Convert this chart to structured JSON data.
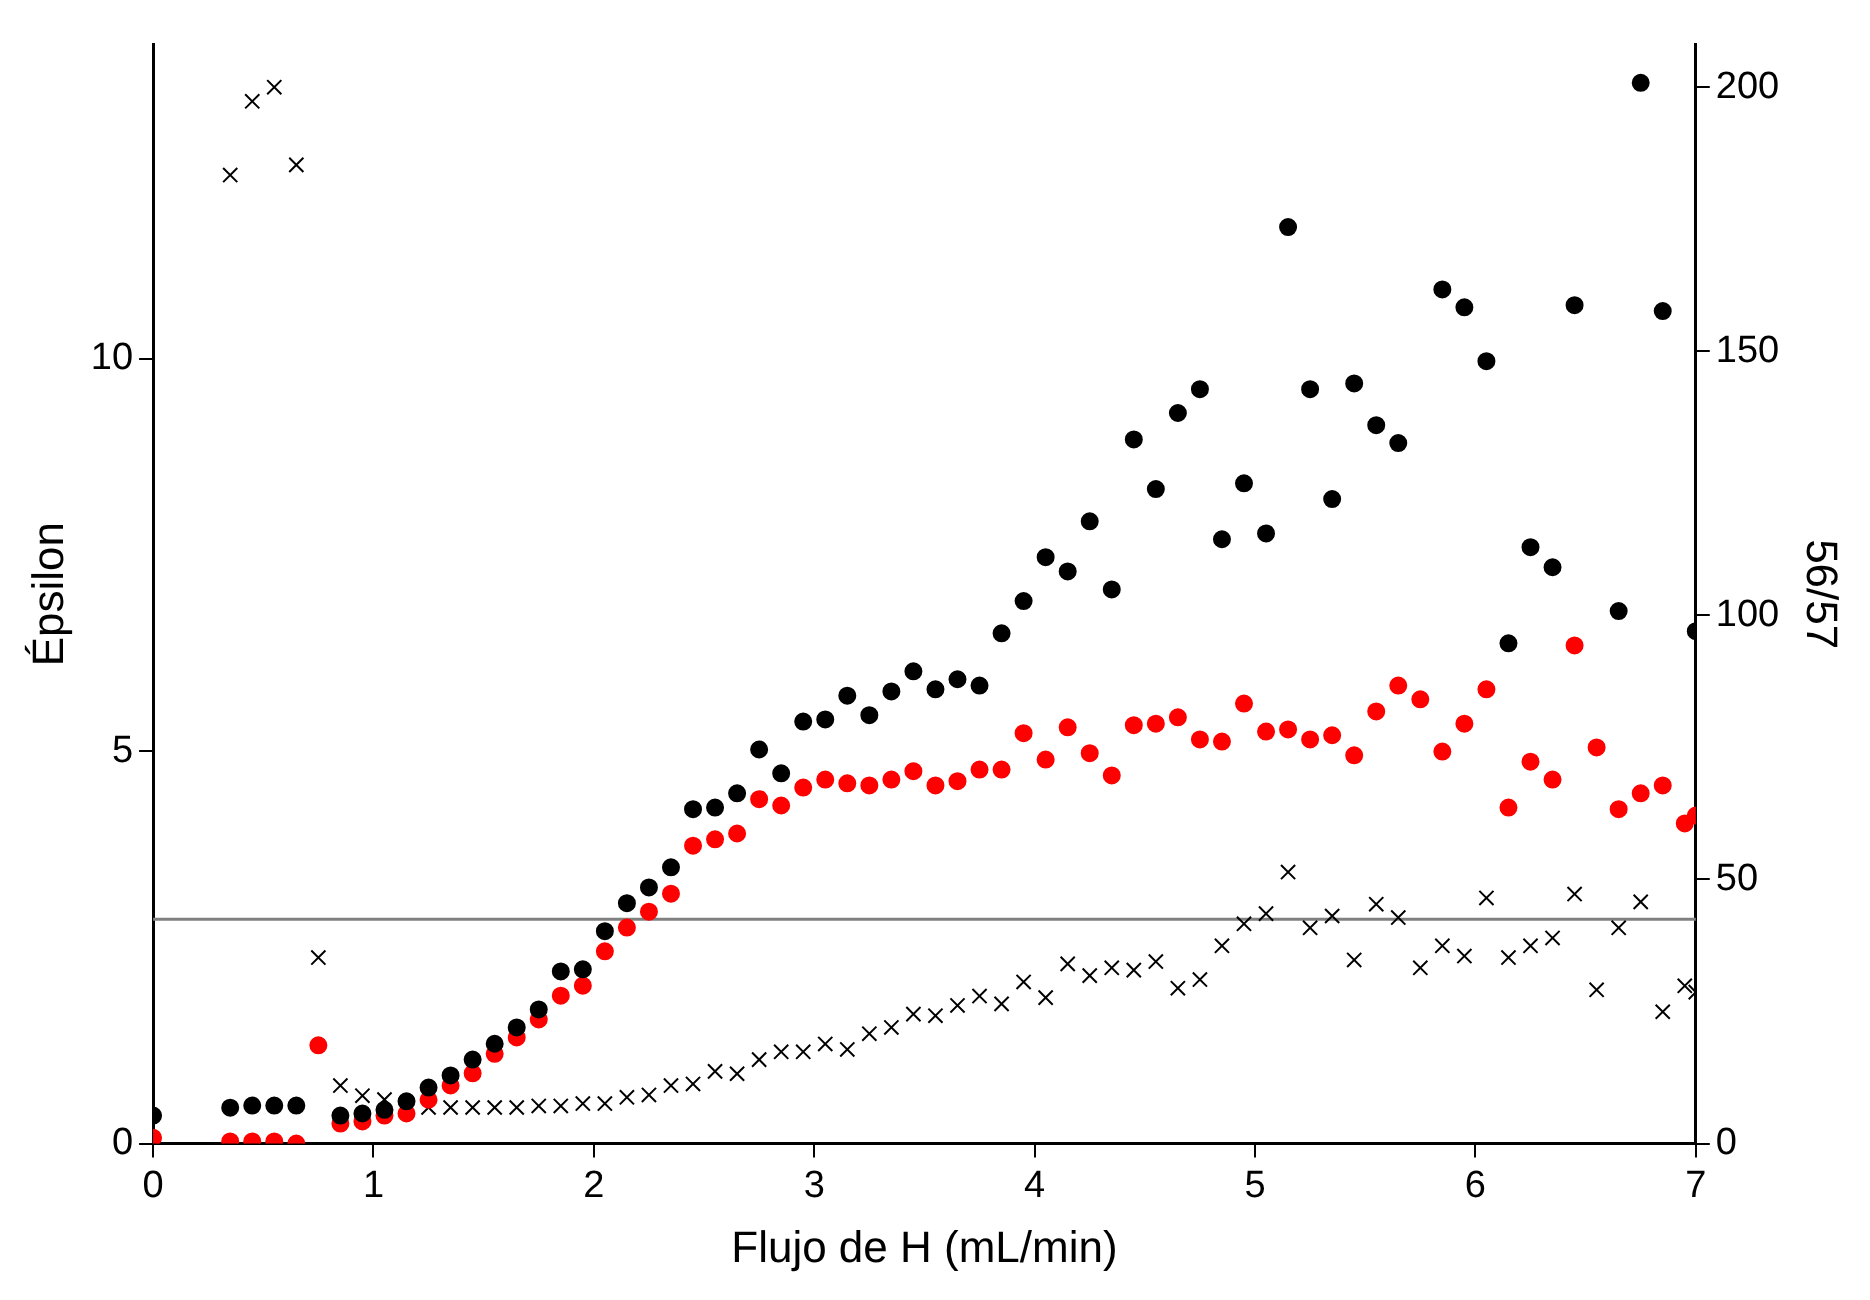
{
  "chart_data": {
    "type": "scatter",
    "xlabel": "Flujo de H (mL/min)",
    "ylabel": "Épsilon",
    "y2label": "56/57",
    "xlim": [
      0,
      7
    ],
    "xticks": [
      0,
      1,
      2,
      3,
      4,
      5,
      6,
      7
    ],
    "ylim": [
      0,
      14
    ],
    "yticks": [
      0,
      5,
      10
    ],
    "y2lim": [
      0,
      208
    ],
    "y2ticks": [
      0,
      50,
      100,
      150,
      200
    ],
    "legend": false,
    "ref_lines": [
      {
        "axis": "y",
        "value": 2.86,
        "color": "#808080"
      }
    ],
    "series": [
      {
        "color": "#000000",
        "marker": "circle",
        "axis": "y2",
        "x": [
          0,
          0.35,
          0.45,
          0.55,
          0.65,
          0.85,
          0.95,
          1.05,
          1.15,
          1.25,
          1.35,
          1.45,
          1.55,
          1.65,
          1.75,
          1.85,
          1.95,
          2.05,
          2.15,
          2.25,
          2.35,
          2.45,
          2.55,
          2.65,
          2.75,
          2.85,
          2.95,
          3.05,
          3.15,
          3.25,
          3.35,
          3.45,
          3.55,
          3.65,
          3.75,
          3.85,
          3.95,
          4.05,
          4.15,
          4.25,
          4.35,
          4.45,
          4.55,
          4.65,
          4.75,
          4.85,
          4.95,
          5.05,
          5.15,
          5.25,
          5.35,
          5.45,
          5.55,
          5.65,
          5.85,
          5.95,
          6.05,
          6.15,
          6.25,
          6.35,
          6.45,
          6.65,
          6.75,
          6.85,
          7.0
        ],
        "values": [
          5.3,
          6.8,
          7.2,
          7.2,
          7.2,
          5.3,
          5.7,
          6.4,
          8,
          10.6,
          12.9,
          15.9,
          18.9,
          22,
          25.4,
          32.6,
          33,
          40.2,
          45.5,
          48.5,
          52.3,
          63.3,
          63.6,
          66.3,
          74.6,
          70.1,
          79.9,
          80.3,
          84.8,
          81.1,
          85.6,
          89.4,
          86,
          87.9,
          86.7,
          96.6,
          102.7,
          111,
          108.3,
          117.8,
          104.9,
          133.3,
          123.9,
          138.3,
          142.8,
          114.4,
          125,
          115.5,
          173.5,
          142.8,
          122,
          143.9,
          136,
          132.6,
          161.7,
          158.3,
          148.1,
          94.7,
          112.9,
          109.1,
          158.7,
          100.8,
          200.8,
          157.6,
          97
        ]
      },
      {
        "color": "#ff0000",
        "marker": "circle",
        "axis": "y2",
        "x": [
          0,
          0.35,
          0.45,
          0.55,
          0.65,
          0.75,
          0.85,
          0.95,
          1.05,
          1.15,
          1.25,
          1.35,
          1.45,
          1.55,
          1.65,
          1.75,
          1.85,
          1.95,
          2.05,
          2.15,
          2.25,
          2.35,
          2.45,
          2.55,
          2.65,
          2.75,
          2.85,
          2.95,
          3.05,
          3.15,
          3.25,
          3.35,
          3.45,
          3.55,
          3.65,
          3.75,
          3.85,
          3.95,
          4.05,
          4.15,
          4.25,
          4.35,
          4.45,
          4.55,
          4.65,
          4.75,
          4.85,
          4.95,
          5.05,
          5.15,
          5.25,
          5.35,
          5.45,
          5.55,
          5.65,
          5.75,
          5.85,
          5.95,
          6.05,
          6.15,
          6.25,
          6.35,
          6.45,
          6.55,
          6.65,
          6.75,
          6.85,
          6.95,
          7.0
        ],
        "values": [
          1.1,
          0.4,
          0.4,
          0.4,
          0,
          18.6,
          3.8,
          4.2,
          5.3,
          5.7,
          8.3,
          11,
          13.3,
          17,
          20.1,
          23.5,
          28,
          29.9,
          36.4,
          40.9,
          43.9,
          47.3,
          56.4,
          57.6,
          58.7,
          65.2,
          64,
          67.4,
          68.9,
          68.2,
          67.8,
          68.9,
          70.5,
          67.8,
          68.6,
          70.8,
          70.8,
          77.7,
          72.7,
          78.8,
          73.9,
          69.7,
          79.2,
          79.5,
          80.7,
          76.5,
          76.1,
          83.3,
          78,
          78.4,
          76.5,
          77.3,
          73.5,
          81.8,
          86.7,
          84.1,
          74.2,
          79.5,
          86,
          63.6,
          72.3,
          68.9,
          94.3,
          75,
          63.3,
          66.3,
          67.8,
          60.6,
          62.1
        ]
      },
      {
        "color": "#000000",
        "marker": "cross",
        "axis": "y",
        "x": [
          0.35,
          0.45,
          0.55,
          0.65,
          0.75,
          0.85,
          0.95,
          1.05,
          1.15,
          1.25,
          1.35,
          1.45,
          1.55,
          1.65,
          1.75,
          1.85,
          1.95,
          2.05,
          2.15,
          2.25,
          2.35,
          2.45,
          2.55,
          2.65,
          2.75,
          2.85,
          2.95,
          3.05,
          3.15,
          3.25,
          3.35,
          3.45,
          3.55,
          3.65,
          3.75,
          3.85,
          3.95,
          4.05,
          4.15,
          4.25,
          4.35,
          4.45,
          4.55,
          4.65,
          4.75,
          4.85,
          4.95,
          5.05,
          5.15,
          5.25,
          5.35,
          5.45,
          5.55,
          5.65,
          5.75,
          5.85,
          5.95,
          6.05,
          6.15,
          6.25,
          6.35,
          6.45,
          6.55,
          6.65,
          6.75,
          6.85,
          6.95,
          7.0
        ],
        "values": [
          12.34,
          13.28,
          13.46,
          12.47,
          2.37,
          0.74,
          0.61,
          0.56,
          0.51,
          0.46,
          0.46,
          0.46,
          0.46,
          0.46,
          0.48,
          0.48,
          0.51,
          0.51,
          0.59,
          0.62,
          0.74,
          0.76,
          0.92,
          0.89,
          1.07,
          1.17,
          1.17,
          1.27,
          1.2,
          1.4,
          1.48,
          1.65,
          1.63,
          1.76,
          1.88,
          1.78,
          2.06,
          1.86,
          2.29,
          2.14,
          2.24,
          2.21,
          2.32,
          1.98,
          2.09,
          2.52,
          2.8,
          2.93,
          3.46,
          2.75,
          2.9,
          2.34,
          3.05,
          2.88,
          2.24,
          2.52,
          2.39,
          3.13,
          2.37,
          2.52,
          2.62,
          3.18,
          1.96,
          2.75,
          3.08,
          1.68,
          2.01,
          1.93
        ]
      }
    ]
  }
}
